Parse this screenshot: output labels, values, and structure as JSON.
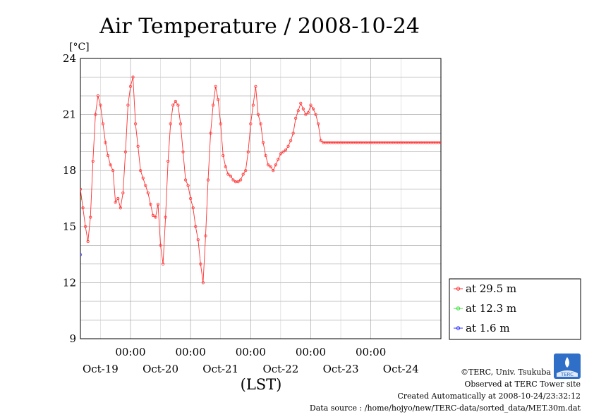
{
  "chart_data": {
    "type": "line",
    "title": "Air Temperature / 2008-10-24",
    "y_unit": "[°C]",
    "xlabel": "(LST)",
    "ylim": [
      9,
      24
    ],
    "yticks": [
      "24",
      "21",
      "18",
      "15",
      "12",
      "9"
    ],
    "y_minor_step": 1,
    "grid": true,
    "x_unit": "hours",
    "xlim": [
      0,
      144
    ],
    "x_time_labels": [
      {
        "x": 20,
        "label": "00:00"
      },
      {
        "x": 44,
        "label": "00:00"
      },
      {
        "x": 68,
        "label": "00:00"
      },
      {
        "x": 92,
        "label": "00:00"
      },
      {
        "x": 116,
        "label": "00:00"
      }
    ],
    "x_day_labels": [
      {
        "x": 8,
        "label": "Oct-19"
      },
      {
        "x": 32,
        "label": "Oct-20"
      },
      {
        "x": 56,
        "label": "Oct-21"
      },
      {
        "x": 80,
        "label": "Oct-22"
      },
      {
        "x": 104,
        "label": "Oct-23"
      },
      {
        "x": 128,
        "label": "Oct-24"
      }
    ],
    "legend_position": "right",
    "series": [
      {
        "name": "at 29.5 m",
        "color": "#ff3030",
        "x": [
          0,
          1,
          2,
          3,
          4,
          5,
          6,
          7,
          8,
          9,
          10,
          11,
          12,
          13,
          14,
          15,
          16,
          17,
          18,
          19,
          20,
          21,
          22,
          23,
          24,
          25,
          26,
          27,
          28,
          29,
          30,
          31,
          32,
          33,
          34,
          35,
          36,
          37,
          38,
          39,
          40,
          41,
          42,
          43,
          44,
          45,
          46,
          47,
          48,
          49,
          50,
          51,
          52,
          53,
          54,
          55,
          56,
          57,
          58,
          59,
          60,
          61,
          62,
          63,
          64,
          65,
          66,
          67,
          68,
          69,
          70,
          71,
          72,
          73,
          74,
          75,
          76,
          77,
          78,
          79,
          80,
          81,
          82,
          83,
          84,
          85,
          86,
          87,
          88,
          89,
          90,
          91,
          92,
          93,
          94,
          95,
          96,
          97,
          98,
          99,
          100,
          101,
          102,
          103,
          104,
          105,
          106,
          107,
          108,
          109,
          110,
          111,
          112,
          113,
          114,
          115,
          116,
          117,
          118,
          119,
          120,
          121,
          122,
          123,
          124,
          125,
          126,
          127,
          128,
          129,
          130,
          131,
          132,
          133,
          134,
          135,
          136,
          137,
          138,
          139,
          140,
          141,
          142,
          143,
          144
        ],
        "values": [
          17.0,
          16.0,
          15.0,
          14.2,
          15.5,
          18.5,
          21.0,
          22.0,
          21.5,
          20.5,
          19.5,
          18.8,
          18.3,
          18.0,
          16.3,
          16.5,
          16.0,
          16.8,
          19.0,
          21.5,
          22.5,
          23.0,
          20.5,
          19.3,
          18.0,
          17.6,
          17.2,
          16.8,
          16.2,
          15.6,
          15.5,
          16.2,
          14.0,
          13.0,
          15.5,
          18.5,
          20.5,
          21.5,
          21.7,
          21.5,
          20.5,
          19.0,
          17.5,
          17.2,
          16.5,
          16.0,
          15.0,
          14.3,
          13.0,
          12.0,
          14.5,
          17.5,
          20.0,
          21.5,
          22.5,
          21.8,
          20.5,
          18.8,
          18.2,
          17.8,
          17.7,
          17.5,
          17.4,
          17.4,
          17.5,
          17.8,
          18.0,
          19.0,
          20.5,
          21.5,
          22.5,
          21.0,
          20.5,
          19.5,
          18.8,
          18.3,
          18.2,
          18.0,
          18.3,
          18.6,
          18.9,
          19.0,
          19.1,
          19.3,
          19.6,
          20.0,
          20.8,
          21.2,
          21.6,
          21.3,
          21.0,
          21.1,
          21.5,
          21.3,
          21.0,
          20.5,
          19.6,
          19.5,
          19.5,
          19.5,
          19.5,
          19.5,
          19.5,
          19.5,
          19.5,
          19.5,
          19.5,
          19.5,
          19.5,
          19.5,
          19.5,
          19.5,
          19.5,
          19.5,
          19.5,
          19.5,
          19.5,
          19.5,
          19.5,
          19.5,
          19.5,
          19.5,
          19.5,
          19.5,
          19.5,
          19.5,
          19.5,
          19.5,
          19.5,
          19.5,
          19.5,
          19.5,
          19.5,
          19.5,
          19.5,
          19.5,
          19.5,
          19.5,
          19.5,
          19.5,
          19.5,
          19.5,
          19.5,
          19.5,
          19.5
        ]
      },
      {
        "name": "at 12.3 m",
        "color": "#30e030",
        "x": [
          0
        ],
        "values": [
          16.5
        ]
      },
      {
        "name": "at 1.6 m",
        "color": "#3030ff",
        "x": [
          0
        ],
        "values": [
          13.5
        ]
      }
    ]
  },
  "credits": {
    "copyright": "©TERC, Univ. Tsukuba",
    "observed": "Observed at TERC Tower site",
    "created": "Created Automatically at 2008-10-24/23:32:12",
    "source": "Data source : /home/hojyo/new/TERC-data/sorted_data/MET.30m.dat"
  },
  "logo_text": "TERC"
}
